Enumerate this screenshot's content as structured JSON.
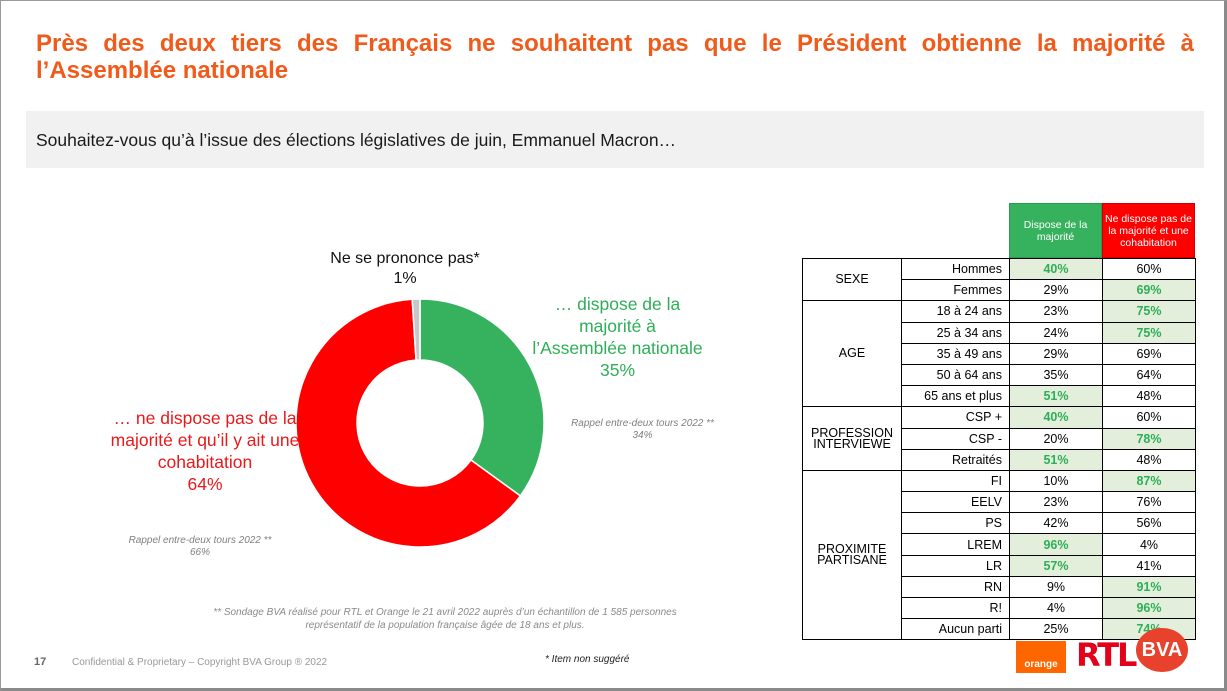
{
  "title": "Près des deux tiers des Français ne souhaitent pas que le Président obtienne la majorité à l’Assemblée nationale",
  "question": "Souhaitez-vous qu’à l’issue des élections législatives de juin, Emmanuel Macron…",
  "chart_data": [
    {
      "type": "pie",
      "subtype": "donut",
      "categories": [
        "… dispose de la majorité à l’Assemblée nationale",
        "… ne dispose pas de la majorité et qu’il y ait une cohabitation",
        "Ne se prononce pas*"
      ],
      "values": [
        35,
        64,
        1
      ],
      "value_labels": [
        "35%",
        "64%",
        "1%"
      ],
      "colors": [
        "#36b25e",
        "#ff0000",
        "#c8c8cc"
      ],
      "recall": {
        "dispose": {
          "text": "Rappel entre-deux tours 2022 **",
          "value": "34%"
        },
        "nodispose": {
          "text": "Rappel entre-deux tours 2022 **",
          "value": "66%"
        }
      }
    },
    {
      "type": "table",
      "columns": [
        "Dispose de la majorité",
        "Ne dispose pas de la majorité et une cohabitation"
      ],
      "column_colors": [
        "#36b25e",
        "#ff0000"
      ],
      "groups": [
        {
          "name": "SEXE",
          "rows": [
            {
              "label": "Hommes",
              "dispose": "40%",
              "nodispose": "60%",
              "hl": "dispose"
            },
            {
              "label": "Femmes",
              "dispose": "29%",
              "nodispose": "69%",
              "hl": "nodispose"
            }
          ]
        },
        {
          "name": "AGE",
          "rows": [
            {
              "label": "18 à 24 ans",
              "dispose": "23%",
              "nodispose": "75%",
              "hl": "nodispose"
            },
            {
              "label": "25 à 34 ans",
              "dispose": "24%",
              "nodispose": "75%",
              "hl": "nodispose"
            },
            {
              "label": "35 à 49 ans",
              "dispose": "29%",
              "nodispose": "69%",
              "hl": ""
            },
            {
              "label": "50 à 64 ans",
              "dispose": "35%",
              "nodispose": "64%",
              "hl": ""
            },
            {
              "label": "65 ans et plus",
              "dispose": "51%",
              "nodispose": "48%",
              "hl": "dispose"
            }
          ]
        },
        {
          "name": "PROFESSION INTERVIEWE",
          "rows": [
            {
              "label": "CSP +",
              "dispose": "40%",
              "nodispose": "60%",
              "hl": "dispose"
            },
            {
              "label": "CSP -",
              "dispose": "20%",
              "nodispose": "78%",
              "hl": "nodispose"
            },
            {
              "label": "Retraités",
              "dispose": "51%",
              "nodispose": "48%",
              "hl": "dispose"
            }
          ]
        },
        {
          "name": "PROXIMITE PARTISANE",
          "rows": [
            {
              "label": "FI",
              "dispose": "10%",
              "nodispose": "87%",
              "hl": "nodispose"
            },
            {
              "label": "EELV",
              "dispose": "23%",
              "nodispose": "76%",
              "hl": ""
            },
            {
              "label": "PS",
              "dispose": "42%",
              "nodispose": "56%",
              "hl": ""
            },
            {
              "label": "LREM",
              "dispose": "96%",
              "nodispose": "4%",
              "hl": "dispose"
            },
            {
              "label": "LR",
              "dispose": "57%",
              "nodispose": "41%",
              "hl": "dispose"
            },
            {
              "label": "RN",
              "dispose": "9%",
              "nodispose": "91%",
              "hl": "nodispose"
            },
            {
              "label": "R!",
              "dispose": "4%",
              "nodispose": "96%",
              "hl": "nodispose"
            },
            {
              "label": "Aucun parti",
              "dispose": "25%",
              "nodispose": "74%",
              "hl": "nodispose"
            }
          ]
        }
      ]
    }
  ],
  "source_note": "** Sondage BVA réalisé pour RTL et Orange le 21 avril 2022 auprès d’un échantillon de 1 585 personnes représentatif de la population française âgée de 18 ans et plus.",
  "item_note": "* Item non suggéré",
  "footer": {
    "page": "17",
    "text": "Confidential & Proprietary – Copyright BVA Group ®  2022"
  },
  "logos": {
    "orange": "orange",
    "rtl": "RTL",
    "bva": "BVA"
  }
}
